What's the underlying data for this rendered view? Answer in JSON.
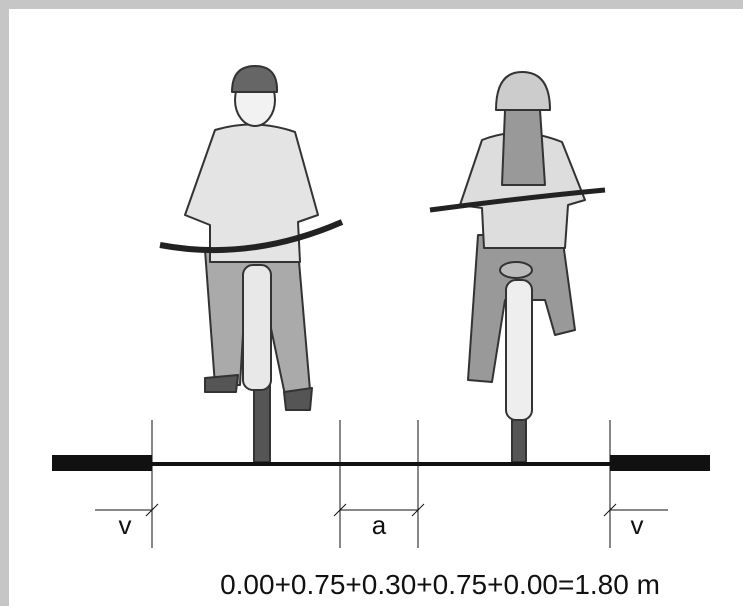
{
  "dimensions": [
    {
      "label": "v"
    },
    {
      "label": "a"
    },
    {
      "label": "v"
    }
  ],
  "formula": "0.00+0.75+0.30+0.75+0.00=1.80 m"
}
